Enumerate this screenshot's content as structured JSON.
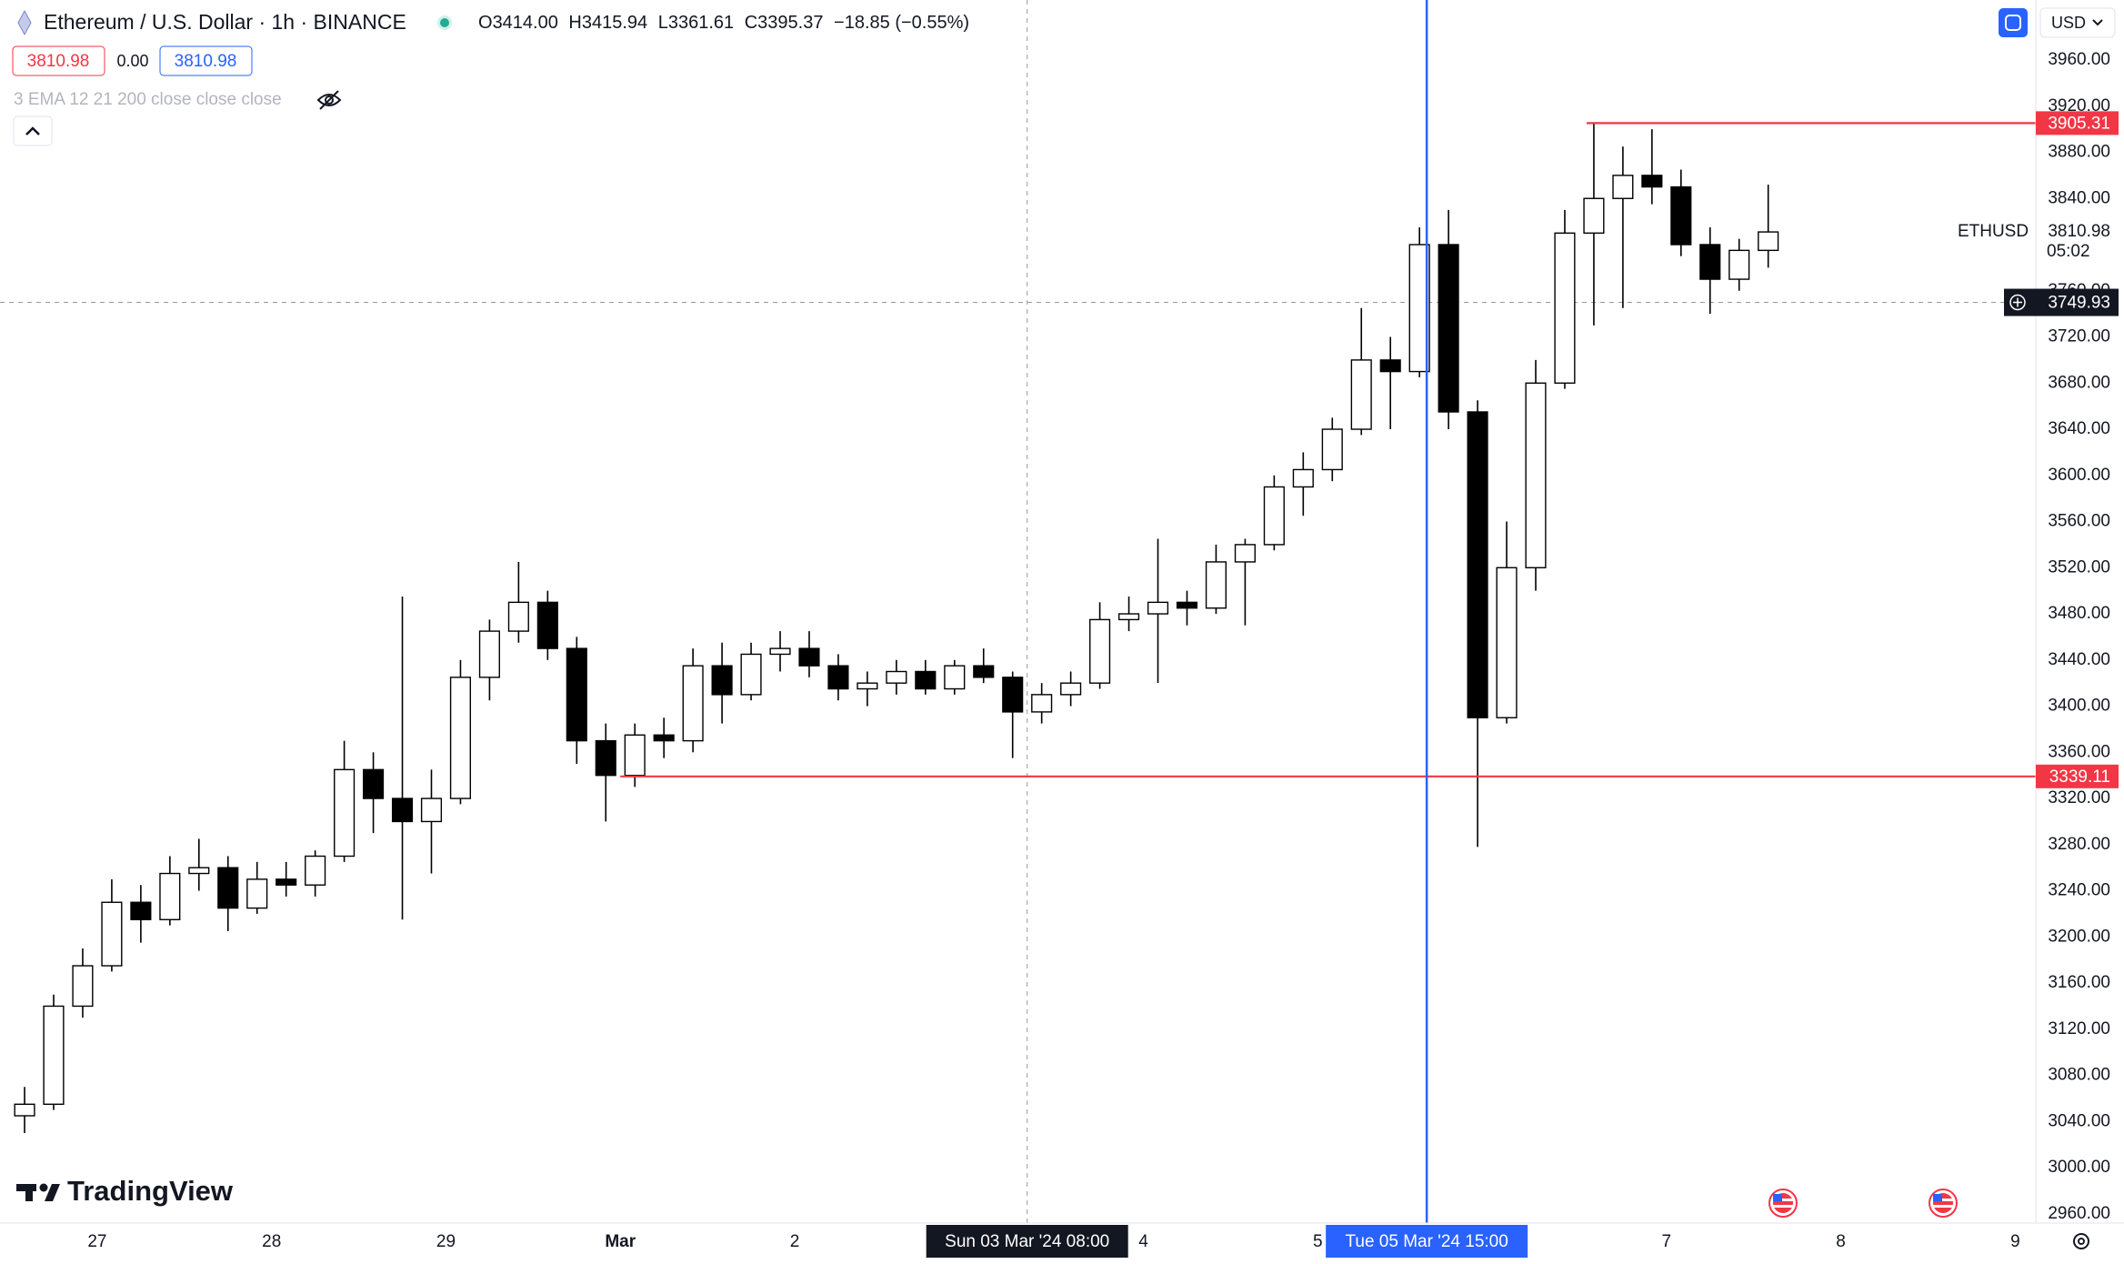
{
  "header": {
    "symbol": "Ethereum / U.S. Dollar · 1h · BINANCE",
    "ohlc": [
      {
        "label": "O",
        "value": "3414.00"
      },
      {
        "label": "H",
        "value": "3415.94"
      },
      {
        "label": "L",
        "value": "3361.61"
      },
      {
        "label": "C",
        "value": "3395.37"
      }
    ],
    "change": "−18.85 (−0.55%)",
    "price_buttons": [
      "3810.98",
      "0.00",
      "3810.98"
    ],
    "indicator": "3 EMA 12 21 200 close close close",
    "currency": "USD"
  },
  "logo": "TradingView",
  "chart_data": {
    "type": "candlestick",
    "symbol_label": "ETHUSD",
    "last_price": 3810.98,
    "countdown": "05:02",
    "up_color": "#ffffff",
    "down_color": "#000000",
    "wick_color": "#000000",
    "x": [
      "2024-02-26T12:00",
      "2024-02-26T16:00",
      "2024-02-26T20:00",
      "2024-02-27T00:00",
      "2024-02-27T04:00",
      "2024-02-27T08:00",
      "2024-02-27T12:00",
      "2024-02-27T16:00",
      "2024-02-27T20:00",
      "2024-02-28T00:00",
      "2024-02-28T04:00",
      "2024-02-28T08:00",
      "2024-02-28T12:00",
      "2024-02-28T16:00",
      "2024-02-28T20:00",
      "2024-02-29T00:00",
      "2024-02-29T04:00",
      "2024-02-29T08:00",
      "2024-02-29T12:00",
      "2024-02-29T16:00",
      "2024-02-29T20:00",
      "2024-03-01T00:00",
      "2024-03-01T04:00",
      "2024-03-01T08:00",
      "2024-03-01T12:00",
      "2024-03-01T16:00",
      "2024-03-01T20:00",
      "2024-03-02T00:00",
      "2024-03-02T04:00",
      "2024-03-02T08:00",
      "2024-03-02T12:00",
      "2024-03-02T16:00",
      "2024-03-02T20:00",
      "2024-03-03T00:00",
      "2024-03-03T04:00",
      "2024-03-03T08:00",
      "2024-03-03T12:00",
      "2024-03-03T16:00",
      "2024-03-03T20:00",
      "2024-03-04T00:00",
      "2024-03-04T04:00",
      "2024-03-04T08:00",
      "2024-03-04T12:00",
      "2024-03-04T16:00",
      "2024-03-04T20:00",
      "2024-03-05T00:00",
      "2024-03-05T04:00",
      "2024-03-05T08:00",
      "2024-03-05T12:00",
      "2024-03-05T16:00",
      "2024-03-05T20:00",
      "2024-03-06T00:00",
      "2024-03-06T04:00",
      "2024-03-06T08:00",
      "2024-03-06T12:00",
      "2024-03-06T16:00",
      "2024-03-06T20:00",
      "2024-03-07T00:00",
      "2024-03-07T04:00",
      "2024-03-07T08:00",
      "2024-03-07T12:00"
    ],
    "open": [
      3045,
      3055,
      3140,
      3175,
      3230,
      3215,
      3255,
      3260,
      3225,
      3250,
      3245,
      3270,
      3345,
      3320,
      3300,
      3320,
      3425,
      3465,
      3490,
      3450,
      3370,
      3340,
      3375,
      3370,
      3435,
      3410,
      3445,
      3450,
      3435,
      3415,
      3420,
      3430,
      3415,
      3435,
      3425,
      3395,
      3410,
      3420,
      3475,
      3480,
      3490,
      3485,
      3525,
      3540,
      3590,
      3605,
      3640,
      3700,
      3690,
      3800,
      3655,
      3390,
      3520,
      3680,
      3810,
      3840,
      3860,
      3850,
      3800,
      3770,
      3795
    ],
    "high": [
      3070,
      3150,
      3190,
      3250,
      3245,
      3270,
      3285,
      3270,
      3265,
      3265,
      3275,
      3370,
      3360,
      3495,
      3345,
      3440,
      3475,
      3525,
      3500,
      3460,
      3385,
      3385,
      3390,
      3450,
      3455,
      3455,
      3465,
      3465,
      3445,
      3430,
      3440,
      3440,
      3440,
      3450,
      3430,
      3420,
      3430,
      3490,
      3495,
      3545,
      3500,
      3540,
      3545,
      3600,
      3620,
      3650,
      3745,
      3720,
      3815,
      3830,
      3665,
      3560,
      3700,
      3830,
      3905,
      3885,
      3900,
      3865,
      3815,
      3805,
      3852
    ],
    "low": [
      3030,
      3050,
      3130,
      3170,
      3195,
      3210,
      3240,
      3205,
      3220,
      3235,
      3235,
      3265,
      3290,
      3215,
      3255,
      3315,
      3405,
      3455,
      3440,
      3350,
      3300,
      3330,
      3355,
      3360,
      3385,
      3405,
      3430,
      3425,
      3405,
      3400,
      3410,
      3410,
      3410,
      3420,
      3355,
      3385,
      3400,
      3415,
      3465,
      3420,
      3470,
      3480,
      3470,
      3535,
      3565,
      3595,
      3635,
      3640,
      3685,
      3640,
      3278,
      3385,
      3500,
      3675,
      3730,
      3745,
      3835,
      3790,
      3740,
      3760,
      3780
    ],
    "close": [
      3055,
      3140,
      3175,
      3230,
      3215,
      3255,
      3260,
      3225,
      3250,
      3245,
      3270,
      3345,
      3320,
      3300,
      3320,
      3425,
      3465,
      3490,
      3450,
      3370,
      3340,
      3375,
      3370,
      3435,
      3410,
      3445,
      3450,
      3435,
      3415,
      3420,
      3430,
      3415,
      3435,
      3425,
      3395,
      3410,
      3420,
      3475,
      3480,
      3490,
      3485,
      3525,
      3540,
      3590,
      3605,
      3640,
      3700,
      3690,
      3800,
      3655,
      3390,
      3520,
      3680,
      3810,
      3840,
      3860,
      3850,
      3800,
      3770,
      3795,
      3810.98
    ],
    "xlim": [
      "2024-02-26T10:37",
      "2024-03-09T02:50"
    ],
    "ylim": [
      2952,
      4012
    ],
    "xticks": [
      {
        "value": "2024-02-27T00:00",
        "label": "27"
      },
      {
        "value": "2024-02-28T00:00",
        "label": "28"
      },
      {
        "value": "2024-02-29T00:00",
        "label": "29"
      },
      {
        "value": "2024-03-01T00:00",
        "label": "Mar"
      },
      {
        "value": "2024-03-02T00:00",
        "label": "2"
      },
      {
        "value": "2024-03-04T00:00",
        "label": "4"
      },
      {
        "value": "2024-03-05T00:00",
        "label": "5"
      },
      {
        "value": "2024-03-07T00:00",
        "label": "7"
      },
      {
        "value": "2024-03-08T00:00",
        "label": "8"
      },
      {
        "value": "2024-03-09T00:00",
        "label": "9"
      }
    ],
    "yticks": [
      {
        "value": 2960,
        "label": "2960.00"
      },
      {
        "value": 3000,
        "label": "3000.00"
      },
      {
        "value": 3040,
        "label": "3040.00"
      },
      {
        "value": 3080,
        "label": "3080.00"
      },
      {
        "value": 3120,
        "label": "3120.00"
      },
      {
        "value": 3160,
        "label": "3160.00"
      },
      {
        "value": 3200,
        "label": "3200.00"
      },
      {
        "value": 3240,
        "label": "3240.00"
      },
      {
        "value": 3280,
        "label": "3280.00"
      },
      {
        "value": 3320,
        "label": "3320.00"
      },
      {
        "value": 3360,
        "label": "3360.00"
      },
      {
        "value": 3400,
        "label": "3400.00"
      },
      {
        "value": 3440,
        "label": "3440.00"
      },
      {
        "value": 3480,
        "label": "3480.00"
      },
      {
        "value": 3520,
        "label": "3520.00"
      },
      {
        "value": 3560,
        "label": "3560.00"
      },
      {
        "value": 3600,
        "label": "3600.00"
      },
      {
        "value": 3640,
        "label": "3640.00"
      },
      {
        "value": 3680,
        "label": "3680.00"
      },
      {
        "value": 3720,
        "label": "3720.00"
      },
      {
        "value": 3760,
        "label": "3760.00"
      },
      {
        "value": 3840,
        "label": "3840.00"
      },
      {
        "value": 3880,
        "label": "3880.00"
      },
      {
        "value": 3920,
        "label": "3920.00"
      },
      {
        "value": 3960,
        "label": "3960.00"
      }
    ],
    "grid": false,
    "hlines": [
      {
        "value": 3905.31,
        "color": "#f23645",
        "from": "2024-03-06T13:00"
      },
      {
        "value": 3339.11,
        "color": "#f23645",
        "from": "2024-03-01T00:00"
      }
    ],
    "crosshair": {
      "x": "2024-03-03T08:00",
      "x_label": "Sun 03 Mar '24 08:00",
      "y": 3749.93
    },
    "marker": {
      "x": "2024-03-05T15:00",
      "label": "Tue 05 Mar '24 15:00",
      "color": "#2962ff"
    }
  }
}
